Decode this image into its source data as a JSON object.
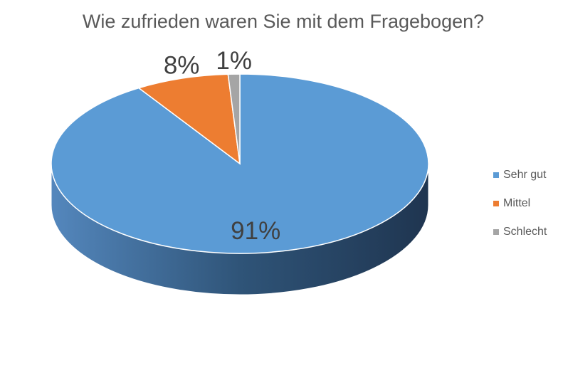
{
  "chart_data": {
    "type": "pie",
    "title": "Wie zufrieden waren Sie mit dem Fragebogen?",
    "categories": [
      "Sehr gut",
      "Mittel",
      "Schlecht"
    ],
    "values": [
      91,
      8,
      1
    ],
    "value_labels": [
      "91%",
      "8%",
      "1%"
    ],
    "colors": [
      "#5b9bd5",
      "#ed7d31",
      "#a5a5a5"
    ],
    "legend": "right"
  }
}
